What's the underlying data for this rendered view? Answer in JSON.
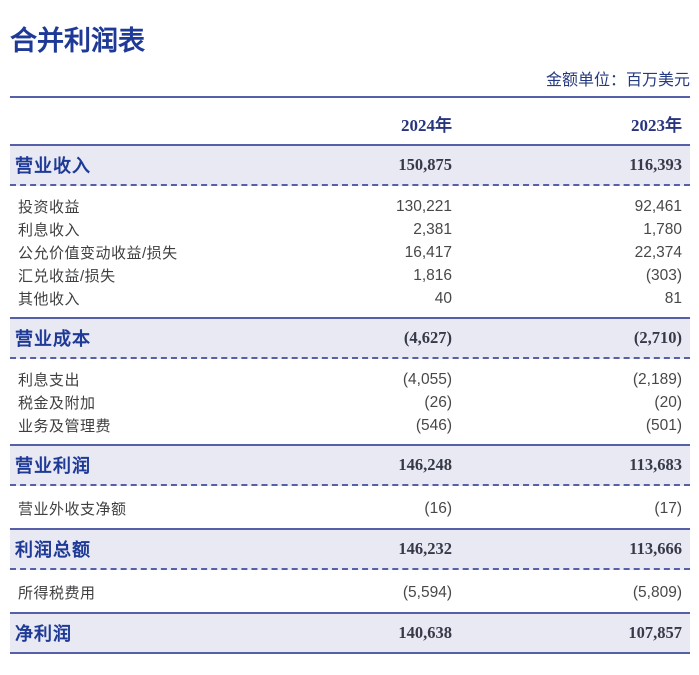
{
  "page": {
    "title": "合并利润表",
    "unit_note": "金额单位：百万美元"
  },
  "colors": {
    "title_blue": "#1e3a96",
    "serif_navy": "#27357e",
    "rule_indigo": "#5560a8",
    "band_background": "#e9e9f4",
    "band_value_dark": "#363947",
    "row_text_gray": "#3e3f41"
  },
  "table": {
    "columns": [
      "2024年",
      "2023年"
    ],
    "sections": [
      {
        "header": {
          "label": "营业收入",
          "v2024": "150,875",
          "v2023": "116,393"
        },
        "rows": [
          {
            "label": "投资收益",
            "v2024": "130,221",
            "v2023": "92,461"
          },
          {
            "label": "利息收入",
            "v2024": "2,381",
            "v2023": "1,780"
          },
          {
            "label": "公允价值变动收益/损失",
            "v2024": "16,417",
            "v2023": "22,374"
          },
          {
            "label": "汇兑收益/损失",
            "v2024": "1,816",
            "v2023": "(303)"
          },
          {
            "label": "其他收入",
            "v2024": "40",
            "v2023": "81"
          }
        ]
      },
      {
        "header": {
          "label": "营业成本",
          "v2024": "(4,627)",
          "v2023": "(2,710)"
        },
        "rows": [
          {
            "label": "利息支出",
            "v2024": "(4,055)",
            "v2023": "(2,189)"
          },
          {
            "label": "税金及附加",
            "v2024": "(26)",
            "v2023": "(20)"
          },
          {
            "label": "业务及管理费",
            "v2024": "(546)",
            "v2023": "(501)"
          }
        ]
      },
      {
        "header": {
          "label": "营业利润",
          "v2024": "146,248",
          "v2023": "113,683"
        },
        "rows": [
          {
            "label": "营业外收支净额",
            "v2024": "(16)",
            "v2023": "(17)"
          }
        ]
      },
      {
        "header": {
          "label": "利润总额",
          "v2024": "146,232",
          "v2023": "113,666"
        },
        "rows": [
          {
            "label": "所得税费用",
            "v2024": "(5,594)",
            "v2023": "(5,809)"
          }
        ]
      },
      {
        "header": {
          "label": "净利润",
          "v2024": "140,638",
          "v2023": "107,857"
        },
        "rows": []
      }
    ]
  }
}
